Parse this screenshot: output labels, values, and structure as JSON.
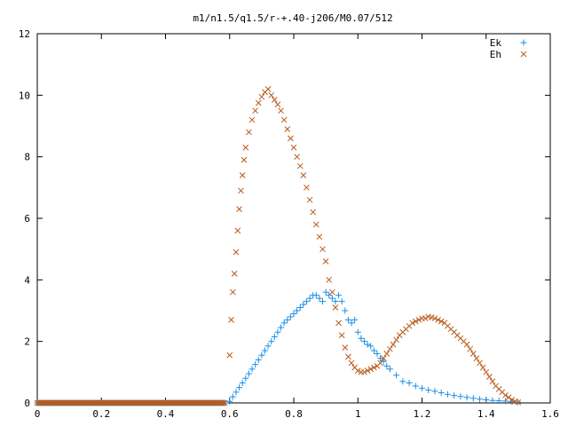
{
  "chart_data": {
    "type": "scatter",
    "title": "m1/n1.5/q1.5/r-+.40-j206/M0.07/512",
    "xlabel": "",
    "ylabel": "",
    "xlim": [
      0,
      1.6
    ],
    "ylim": [
      0,
      12
    ],
    "x_ticks": [
      "0",
      "0.2",
      "0.4",
      "0.6",
      "0.8",
      "1",
      "1.2",
      "1.4",
      "1.6"
    ],
    "y_ticks": [
      "0",
      "2",
      "4",
      "6",
      "8",
      "10",
      "12"
    ],
    "grid": false,
    "legend_position": "top-right",
    "series": [
      {
        "name": "Ek",
        "marker": "plus",
        "color": "#1a8fe6",
        "x": [
          0,
          0.05,
          0.1,
          0.15,
          0.2,
          0.25,
          0.3,
          0.35,
          0.4,
          0.45,
          0.5,
          0.55,
          0.59,
          0.6,
          0.61,
          0.62,
          0.63,
          0.64,
          0.65,
          0.66,
          0.67,
          0.68,
          0.69,
          0.7,
          0.71,
          0.72,
          0.73,
          0.74,
          0.75,
          0.76,
          0.77,
          0.78,
          0.79,
          0.8,
          0.81,
          0.82,
          0.83,
          0.84,
          0.85,
          0.86,
          0.87,
          0.88,
          0.89,
          0.9,
          0.91,
          0.92,
          0.93,
          0.94,
          0.95,
          0.96,
          0.97,
          0.98,
          0.99,
          1.0,
          1.01,
          1.02,
          1.03,
          1.04,
          1.05,
          1.06,
          1.07,
          1.08,
          1.09,
          1.1,
          1.12,
          1.14,
          1.16,
          1.18,
          1.2,
          1.22,
          1.24,
          1.26,
          1.28,
          1.3,
          1.32,
          1.34,
          1.36,
          1.38,
          1.4,
          1.42,
          1.44,
          1.46,
          1.48,
          1.5
        ],
        "y": [
          0,
          0,
          0,
          0,
          0,
          0,
          0,
          0,
          0,
          0,
          0,
          0,
          0,
          0.05,
          0.2,
          0.35,
          0.5,
          0.65,
          0.8,
          0.95,
          1.1,
          1.25,
          1.4,
          1.55,
          1.7,
          1.85,
          2.0,
          2.15,
          2.3,
          2.45,
          2.6,
          2.7,
          2.8,
          2.9,
          3.0,
          3.1,
          3.2,
          3.3,
          3.4,
          3.5,
          3.5,
          3.4,
          3.3,
          3.6,
          3.5,
          3.4,
          3.3,
          3.5,
          3.3,
          3.0,
          2.7,
          2.6,
          2.7,
          2.3,
          2.1,
          2.0,
          1.9,
          1.85,
          1.7,
          1.6,
          1.45,
          1.35,
          1.2,
          1.1,
          0.9,
          0.7,
          0.65,
          0.55,
          0.48,
          0.42,
          0.38,
          0.33,
          0.28,
          0.24,
          0.21,
          0.18,
          0.15,
          0.12,
          0.1,
          0.08,
          0.07,
          0.06,
          0.04,
          0.02
        ]
      },
      {
        "name": "Eh",
        "marker": "cross",
        "color": "#b85a1a",
        "x": [
          0,
          0.05,
          0.1,
          0.15,
          0.2,
          0.25,
          0.3,
          0.35,
          0.4,
          0.45,
          0.5,
          0.55,
          0.59,
          0.6,
          0.605,
          0.61,
          0.615,
          0.62,
          0.625,
          0.63,
          0.635,
          0.64,
          0.645,
          0.65,
          0.66,
          0.67,
          0.68,
          0.69,
          0.7,
          0.71,
          0.72,
          0.73,
          0.74,
          0.75,
          0.76,
          0.77,
          0.78,
          0.79,
          0.8,
          0.81,
          0.82,
          0.83,
          0.84,
          0.85,
          0.86,
          0.87,
          0.88,
          0.89,
          0.9,
          0.91,
          0.92,
          0.93,
          0.94,
          0.95,
          0.96,
          0.97,
          0.98,
          0.99,
          1.0,
          1.01,
          1.02,
          1.03,
          1.04,
          1.05,
          1.06,
          1.07,
          1.08,
          1.09,
          1.1,
          1.11,
          1.12,
          1.13,
          1.14,
          1.15,
          1.16,
          1.17,
          1.18,
          1.19,
          1.2,
          1.21,
          1.22,
          1.23,
          1.24,
          1.25,
          1.26,
          1.27,
          1.28,
          1.29,
          1.3,
          1.31,
          1.32,
          1.33,
          1.34,
          1.35,
          1.36,
          1.37,
          1.38,
          1.39,
          1.4,
          1.41,
          1.42,
          1.43,
          1.44,
          1.45,
          1.46,
          1.47,
          1.48,
          1.49,
          1.5
        ],
        "y": [
          0,
          0,
          0,
          0,
          0,
          0,
          0,
          0,
          0,
          0,
          0,
          0,
          0,
          1.55,
          2.7,
          3.6,
          4.2,
          4.9,
          5.6,
          6.3,
          6.9,
          7.4,
          7.9,
          8.3,
          8.8,
          9.2,
          9.5,
          9.75,
          9.95,
          10.1,
          10.2,
          10.0,
          9.85,
          9.7,
          9.5,
          9.2,
          8.9,
          8.6,
          8.3,
          8.0,
          7.7,
          7.4,
          7.0,
          6.6,
          6.2,
          5.8,
          5.4,
          5.0,
          4.6,
          4.0,
          3.6,
          3.1,
          2.6,
          2.2,
          1.8,
          1.5,
          1.3,
          1.15,
          1.05,
          1.0,
          1.0,
          1.05,
          1.1,
          1.15,
          1.2,
          1.3,
          1.45,
          1.6,
          1.75,
          1.9,
          2.05,
          2.2,
          2.3,
          2.4,
          2.5,
          2.6,
          2.65,
          2.7,
          2.75,
          2.75,
          2.8,
          2.78,
          2.75,
          2.7,
          2.65,
          2.6,
          2.5,
          2.4,
          2.3,
          2.2,
          2.1,
          2.0,
          1.9,
          1.75,
          1.6,
          1.45,
          1.3,
          1.15,
          1.0,
          0.85,
          0.7,
          0.55,
          0.45,
          0.35,
          0.25,
          0.18,
          0.1,
          0.05,
          0.02
        ]
      }
    ]
  }
}
